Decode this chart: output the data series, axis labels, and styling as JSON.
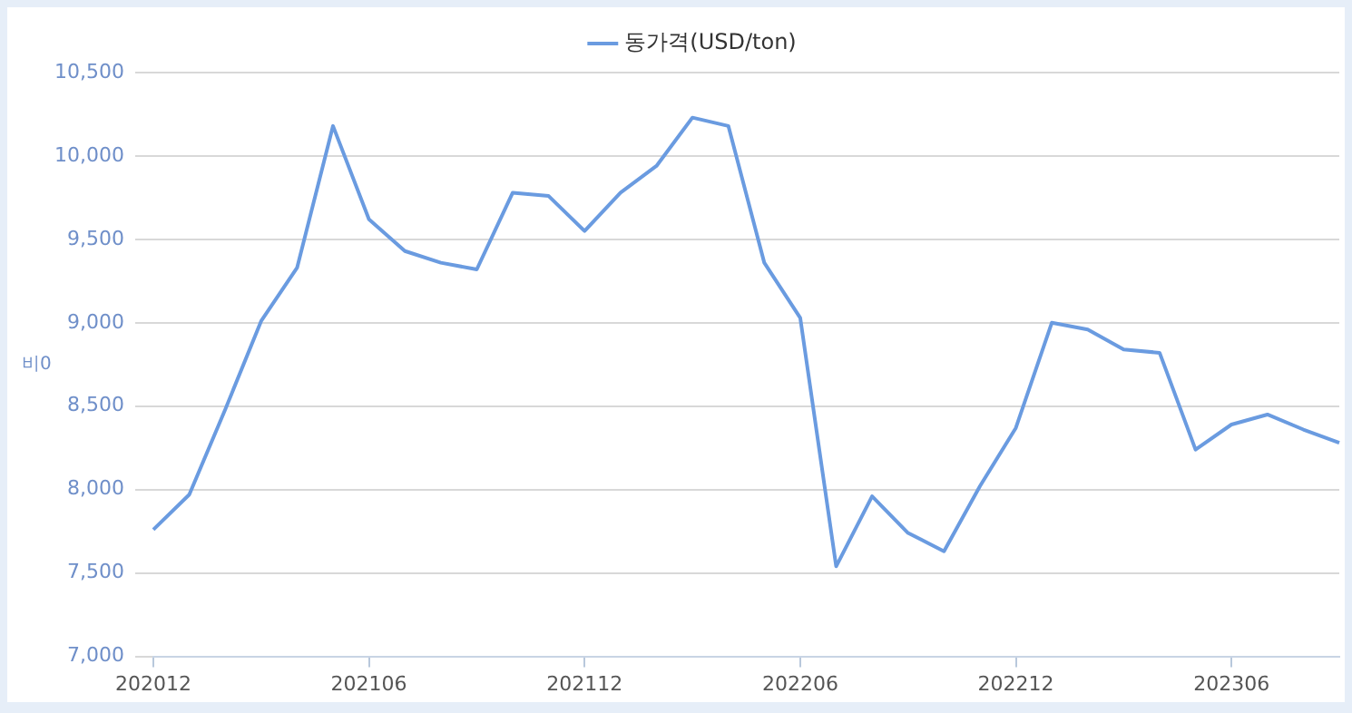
{
  "chart_data": {
    "type": "line",
    "ylabel": "비0",
    "legend": "top",
    "categories": [
      "202012",
      null,
      null,
      null,
      null,
      null,
      "202106",
      null,
      null,
      null,
      null,
      null,
      "202112",
      null,
      null,
      null,
      null,
      null,
      "202206",
      null,
      null,
      null,
      null,
      null,
      "202212",
      null,
      null,
      null,
      null,
      null,
      "202306",
      null,
      null,
      null
    ],
    "series": [
      {
        "name": "동가격(USD/ton)",
        "color": "#6a9be0",
        "values": [
          7760,
          7970,
          8480,
          9010,
          9330,
          10180,
          9620,
          9430,
          9360,
          9320,
          9780,
          9760,
          9550,
          9780,
          9940,
          10230,
          10180,
          9360,
          9030,
          7540,
          7960,
          7740,
          7630,
          8020,
          8370,
          9000,
          8960,
          8840,
          8820,
          8240,
          8390,
          8450,
          8360,
          8280
        ]
      }
    ],
    "ylim": [
      7000,
      10500
    ],
    "yticks": [
      {
        "value": 7000,
        "label": "7,000"
      },
      {
        "value": 7500,
        "label": "7,500"
      },
      {
        "value": 8000,
        "label": "8,000"
      },
      {
        "value": 8500,
        "label": "8,500"
      },
      {
        "value": 9000,
        "label": "9,000"
      },
      {
        "value": 9500,
        "label": "9,500"
      },
      {
        "value": 10000,
        "label": "10,000"
      },
      {
        "value": 10500,
        "label": "10,500"
      }
    ],
    "grid": "y",
    "marker": "none",
    "line_style": "solid"
  }
}
